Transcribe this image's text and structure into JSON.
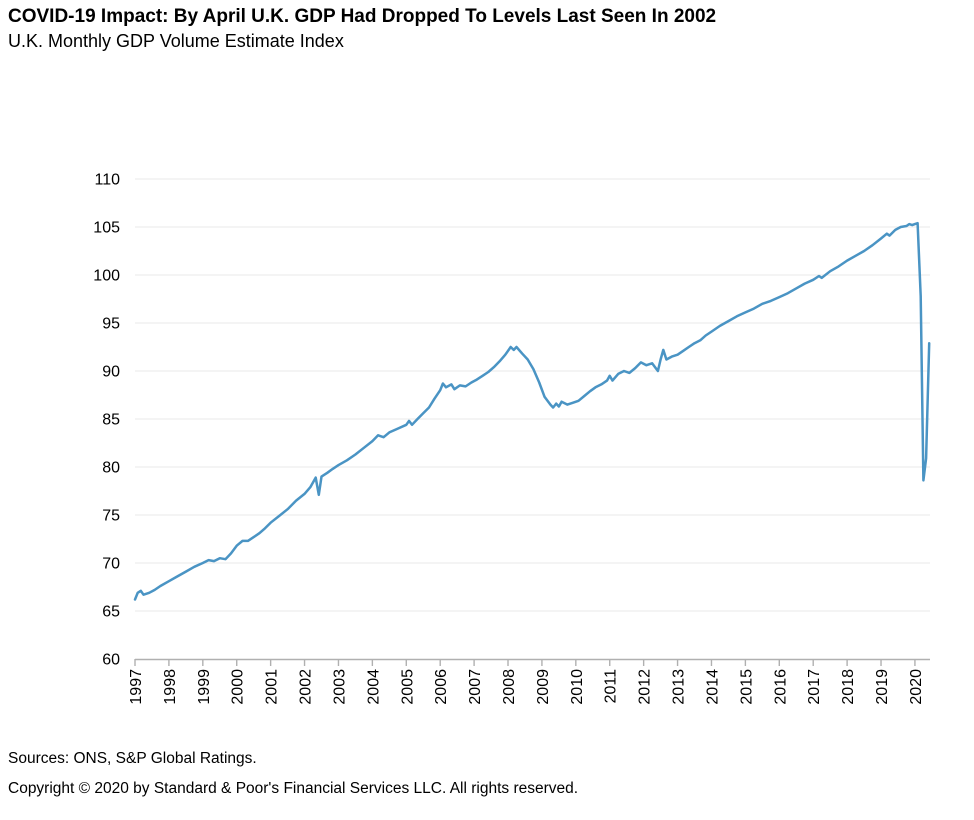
{
  "header": {
    "title": "COVID-19 Impact: By April U.K. GDP Had Dropped To Levels Last Seen In 2002",
    "subtitle": "U.K. Monthly GDP Volume Estimate Index"
  },
  "footer": {
    "sources": "Sources: ONS, S&P Global Ratings.",
    "copyright": "Copyright © 2020 by Standard & Poor's Financial Services LLC. All rights reserved."
  },
  "chart_data": {
    "type": "line",
    "title": "U.K. Monthly GDP Volume Estimate Index",
    "legend": "none",
    "grid": "horizontal",
    "line_color": "#4a94c4",
    "grid_color": "#e8e8e8",
    "axis_color": "#b0b0b0",
    "x_axis": {
      "tick_labels": [
        "1997",
        "1998",
        "1999",
        "2000",
        "2001",
        "2002",
        "2003",
        "2004",
        "2005",
        "2006",
        "2007",
        "2008",
        "2009",
        "2010",
        "2011",
        "2012",
        "2013",
        "2014",
        "2015",
        "2016",
        "2017",
        "2018",
        "2019",
        "2020"
      ],
      "tick_rotation_deg": 90,
      "range": [
        1997,
        2020.5
      ]
    },
    "y_axis": {
      "tick_labels": [
        "60",
        "65",
        "70",
        "75",
        "80",
        "85",
        "90",
        "95",
        "100",
        "105",
        "110"
      ],
      "ticks": [
        60,
        65,
        70,
        75,
        80,
        85,
        90,
        95,
        100,
        105,
        110
      ],
      "range": [
        60,
        110
      ]
    },
    "series": [
      {
        "name": "U.K. Monthly GDP Volume Estimate Index",
        "points": [
          [
            1997.0,
            66.2
          ],
          [
            1997.08,
            66.9
          ],
          [
            1997.17,
            67.1
          ],
          [
            1997.25,
            66.7
          ],
          [
            1997.42,
            66.9
          ],
          [
            1997.58,
            67.2
          ],
          [
            1997.75,
            67.6
          ],
          [
            1998.0,
            68.1
          ],
          [
            1998.25,
            68.6
          ],
          [
            1998.5,
            69.1
          ],
          [
            1998.75,
            69.6
          ],
          [
            1999.0,
            70.0
          ],
          [
            1999.17,
            70.3
          ],
          [
            1999.33,
            70.2
          ],
          [
            1999.5,
            70.5
          ],
          [
            1999.67,
            70.4
          ],
          [
            1999.83,
            71.0
          ],
          [
            2000.0,
            71.8
          ],
          [
            2000.17,
            72.3
          ],
          [
            2000.33,
            72.3
          ],
          [
            2000.5,
            72.7
          ],
          [
            2000.67,
            73.1
          ],
          [
            2000.83,
            73.6
          ],
          [
            2001.0,
            74.2
          ],
          [
            2001.25,
            74.9
          ],
          [
            2001.5,
            75.6
          ],
          [
            2001.75,
            76.5
          ],
          [
            2002.0,
            77.2
          ],
          [
            2002.17,
            77.9
          ],
          [
            2002.33,
            78.9
          ],
          [
            2002.42,
            77.1
          ],
          [
            2002.5,
            79.0
          ],
          [
            2002.67,
            79.4
          ],
          [
            2002.83,
            79.8
          ],
          [
            2003.0,
            80.2
          ],
          [
            2003.25,
            80.7
          ],
          [
            2003.5,
            81.3
          ],
          [
            2003.75,
            82.0
          ],
          [
            2004.0,
            82.7
          ],
          [
            2004.17,
            83.3
          ],
          [
            2004.33,
            83.1
          ],
          [
            2004.5,
            83.6
          ],
          [
            2004.75,
            84.0
          ],
          [
            2005.0,
            84.4
          ],
          [
            2005.08,
            84.8
          ],
          [
            2005.17,
            84.4
          ],
          [
            2005.33,
            85.0
          ],
          [
            2005.5,
            85.6
          ],
          [
            2005.67,
            86.2
          ],
          [
            2005.83,
            87.1
          ],
          [
            2006.0,
            88.0
          ],
          [
            2006.08,
            88.7
          ],
          [
            2006.17,
            88.3
          ],
          [
            2006.33,
            88.6
          ],
          [
            2006.42,
            88.1
          ],
          [
            2006.58,
            88.5
          ],
          [
            2006.75,
            88.4
          ],
          [
            2006.92,
            88.8
          ],
          [
            2007.08,
            89.1
          ],
          [
            2007.25,
            89.5
          ],
          [
            2007.42,
            89.9
          ],
          [
            2007.58,
            90.4
          ],
          [
            2007.75,
            91.0
          ],
          [
            2007.92,
            91.7
          ],
          [
            2008.08,
            92.5
          ],
          [
            2008.17,
            92.2
          ],
          [
            2008.25,
            92.5
          ],
          [
            2008.42,
            91.8
          ],
          [
            2008.58,
            91.2
          ],
          [
            2008.75,
            90.2
          ],
          [
            2008.92,
            88.8
          ],
          [
            2009.08,
            87.3
          ],
          [
            2009.25,
            86.5
          ],
          [
            2009.33,
            86.2
          ],
          [
            2009.42,
            86.6
          ],
          [
            2009.5,
            86.3
          ],
          [
            2009.58,
            86.8
          ],
          [
            2009.75,
            86.5
          ],
          [
            2009.92,
            86.7
          ],
          [
            2010.08,
            86.9
          ],
          [
            2010.25,
            87.4
          ],
          [
            2010.42,
            87.9
          ],
          [
            2010.58,
            88.3
          ],
          [
            2010.75,
            88.6
          ],
          [
            2010.92,
            89.0
          ],
          [
            2011.0,
            89.5
          ],
          [
            2011.08,
            89.0
          ],
          [
            2011.25,
            89.7
          ],
          [
            2011.42,
            90.0
          ],
          [
            2011.58,
            89.8
          ],
          [
            2011.75,
            90.3
          ],
          [
            2011.92,
            90.9
          ],
          [
            2012.08,
            90.6
          ],
          [
            2012.25,
            90.8
          ],
          [
            2012.42,
            90.0
          ],
          [
            2012.5,
            91.2
          ],
          [
            2012.58,
            92.2
          ],
          [
            2012.67,
            91.2
          ],
          [
            2012.83,
            91.5
          ],
          [
            2013.0,
            91.7
          ],
          [
            2013.17,
            92.1
          ],
          [
            2013.33,
            92.5
          ],
          [
            2013.5,
            92.9
          ],
          [
            2013.67,
            93.2
          ],
          [
            2013.83,
            93.7
          ],
          [
            2014.0,
            94.1
          ],
          [
            2014.25,
            94.7
          ],
          [
            2014.5,
            95.2
          ],
          [
            2014.75,
            95.7
          ],
          [
            2015.0,
            96.1
          ],
          [
            2015.25,
            96.5
          ],
          [
            2015.5,
            97.0
          ],
          [
            2015.75,
            97.3
          ],
          [
            2016.0,
            97.7
          ],
          [
            2016.25,
            98.1
          ],
          [
            2016.5,
            98.6
          ],
          [
            2016.75,
            99.1
          ],
          [
            2017.0,
            99.5
          ],
          [
            2017.17,
            99.9
          ],
          [
            2017.25,
            99.7
          ],
          [
            2017.5,
            100.4
          ],
          [
            2017.75,
            100.9
          ],
          [
            2018.0,
            101.5
          ],
          [
            2018.25,
            102.0
          ],
          [
            2018.5,
            102.5
          ],
          [
            2018.75,
            103.1
          ],
          [
            2019.0,
            103.8
          ],
          [
            2019.17,
            104.3
          ],
          [
            2019.25,
            104.1
          ],
          [
            2019.42,
            104.7
          ],
          [
            2019.58,
            105.0
          ],
          [
            2019.75,
            105.1
          ],
          [
            2019.83,
            105.3
          ],
          [
            2019.92,
            105.2
          ],
          [
            2020.0,
            105.3
          ],
          [
            2020.08,
            105.4
          ],
          [
            2020.17,
            97.8
          ],
          [
            2020.25,
            78.6
          ],
          [
            2020.33,
            80.9
          ],
          [
            2020.42,
            92.9
          ]
        ]
      }
    ]
  }
}
